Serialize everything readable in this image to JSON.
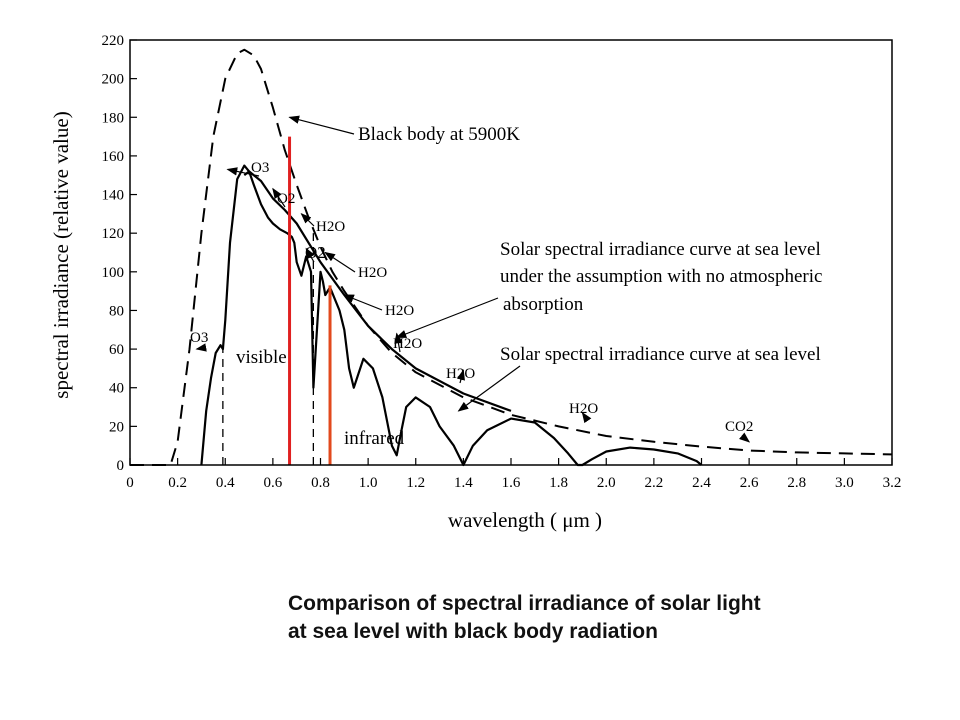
{
  "caption": {
    "line1": "Comparison of spectral irradiance of solar light",
    "line2": "at sea level with black body radiation"
  },
  "chart_data": {
    "type": "line",
    "xlabel": "wavelength ( μm )",
    "ylabel": "spectral irradiance (relative value)",
    "xlim": [
      0,
      3.2
    ],
    "ylim": [
      0,
      220
    ],
    "xticks": [
      "0",
      "0.2",
      "0.4",
      "0.6",
      "0.8",
      "1.0",
      "1.2",
      "1.4",
      "1.6",
      "1.8",
      "2.0",
      "2.2",
      "2.4",
      "2.6",
      "2.8",
      "3.0",
      "3.2"
    ],
    "yticks": [
      "0",
      "20",
      "40",
      "60",
      "80",
      "100",
      "120",
      "140",
      "160",
      "180",
      "200",
      "220"
    ],
    "grid": false,
    "series": [
      {
        "name": "Black body at 5900K",
        "style": "dashed",
        "x": [
          0,
          0.17,
          0.2,
          0.25,
          0.3,
          0.35,
          0.4,
          0.45,
          0.48,
          0.52,
          0.55,
          0.6,
          0.65,
          0.7,
          0.75,
          0.8,
          0.85,
          0.9,
          1.0,
          1.1,
          1.2,
          1.4,
          1.6,
          1.8,
          2.0,
          2.2,
          2.4,
          2.6,
          2.8,
          3.0,
          3.2
        ],
        "y": [
          0,
          0,
          12,
          60,
          120,
          170,
          200,
          213,
          215,
          212,
          205,
          185,
          163,
          145,
          128,
          113,
          100,
          90,
          72,
          58,
          48,
          35,
          26,
          20,
          15,
          12,
          9.5,
          7.5,
          6.5,
          6,
          5.5
        ]
      },
      {
        "name": "Solar spectral irradiance curve at sea level under the assumption with no atmospheric absorption",
        "style": "solid",
        "x": [
          0.48,
          0.5,
          0.55,
          0.6,
          0.65,
          0.7,
          0.8,
          0.9,
          1.0,
          1.1,
          1.2,
          1.4,
          1.6
        ],
        "y": [
          150,
          152,
          147,
          138,
          132,
          125,
          105,
          88,
          72,
          60,
          50,
          37,
          28
        ]
      },
      {
        "name": "Solar spectral irradiance curve at sea level",
        "style": "solid",
        "x": [
          0.3,
          0.32,
          0.34,
          0.36,
          0.38,
          0.39,
          0.4,
          0.42,
          0.45,
          0.48,
          0.5,
          0.52,
          0.55,
          0.58,
          0.6,
          0.63,
          0.66,
          0.68,
          0.69,
          0.7,
          0.72,
          0.74,
          0.76,
          0.77,
          0.8,
          0.81,
          0.82,
          0.84,
          0.88,
          0.9,
          0.92,
          0.94,
          0.98,
          1.02,
          1.06,
          1.1,
          1.12,
          1.14,
          1.16,
          1.2,
          1.26,
          1.3,
          1.36,
          1.4,
          1.44,
          1.5,
          1.6,
          1.7,
          1.78,
          1.84,
          1.88,
          1.9,
          1.94,
          2.0,
          2.1,
          2.2,
          2.3,
          2.38,
          2.4
        ],
        "y": [
          0,
          28,
          45,
          58,
          62,
          60,
          75,
          115,
          148,
          155,
          152,
          145,
          135,
          128,
          125,
          122,
          120,
          118,
          115,
          105,
          98,
          108,
          100,
          40,
          100,
          95,
          88,
          92,
          80,
          70,
          50,
          40,
          55,
          50,
          35,
          10,
          5,
          18,
          30,
          35,
          30,
          20,
          10,
          0,
          10,
          18,
          24,
          22,
          14,
          6,
          0,
          0,
          3,
          7,
          9,
          8,
          6,
          2,
          0
        ]
      }
    ],
    "vertical_lines": [
      {
        "x": 0.67,
        "y_top": 170,
        "color": "#e02020"
      },
      {
        "x": 0.84,
        "y_top": 93,
        "color": "#e2491d"
      }
    ],
    "region_dividers": [
      {
        "x": 0.39,
        "y_top": 60
      },
      {
        "x": 0.77,
        "y_top": 120
      }
    ],
    "annotations": [
      {
        "id": "bb",
        "text": "Black body at 5900K",
        "ax": 0.67,
        "ay": 180
      },
      {
        "id": "o3a",
        "text": "O3",
        "ax": 0.41,
        "ay": 153
      },
      {
        "id": "o2a",
        "text": "O2",
        "ax": 0.6,
        "ay": 143
      },
      {
        "id": "h2oa",
        "text": "H2O",
        "ax": 0.72,
        "ay": 130
      },
      {
        "id": "o2b",
        "text": "O2",
        "ax": 0.74,
        "ay": 112
      },
      {
        "id": "h2ob",
        "text": "H2O",
        "ax": 0.82,
        "ay": 110
      },
      {
        "id": "h2oc",
        "text": "H2O",
        "ax": 0.9,
        "ay": 88
      },
      {
        "id": "h2od",
        "text": "H2O",
        "ax": 1.12,
        "ay": 68
      },
      {
        "id": "h2oe",
        "text": "H2O",
        "ax": 1.4,
        "ay": 49
      },
      {
        "id": "h2of",
        "text": "H2O",
        "ax": 1.9,
        "ay": 27
      },
      {
        "id": "co2",
        "text": "CO2",
        "ax": 2.6,
        "ay": 12
      },
      {
        "id": "o3b",
        "text": "O3",
        "ax": 0.28,
        "ay": 60
      },
      {
        "id": "visible",
        "text": "visible",
        "ax": 0.52,
        "ay": 57
      },
      {
        "id": "infrared",
        "text": "infrared",
        "ax": 0.96,
        "ay": 14
      },
      {
        "id": "lbl1a",
        "text": "Solar spectral irradiance curve at sea level",
        "ax": 1.12,
        "ay": 66
      },
      {
        "id": "lbl1b",
        "text": "under the assumption with no atmospheric",
        "ax": 1.12,
        "ay": 66
      },
      {
        "id": "lbl1c",
        "text": "absorption",
        "ax": 1.12,
        "ay": 66
      },
      {
        "id": "lbl2",
        "text": "Solar spectral irradiance curve at sea level",
        "ax": 1.38,
        "ay": 28
      }
    ]
  }
}
